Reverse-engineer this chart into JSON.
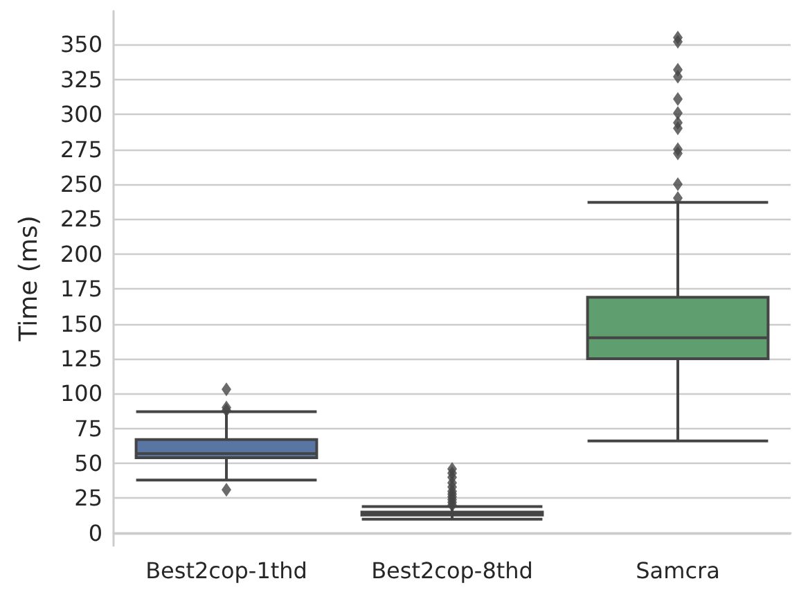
{
  "chart_data": {
    "type": "box",
    "ylabel": "Time (ms)",
    "categories": [
      "Best2cop-1thd",
      "Best2cop-8thd",
      "Samcra"
    ],
    "colors": [
      "#5875a4",
      "#cc8963",
      "#5f9e6e"
    ],
    "boxes": [
      {
        "low": 38,
        "q1": 54,
        "median": 57,
        "q3": 67,
        "high": 87,
        "outliers": [
          31,
          88,
          90,
          103
        ]
      },
      {
        "low": 10,
        "q1": 13,
        "median": 14,
        "q3": 15,
        "high": 19,
        "outliers": [
          20,
          22,
          24,
          26,
          28,
          30,
          33,
          36,
          40,
          43,
          46
        ]
      },
      {
        "low": 66,
        "q1": 125,
        "median": 140,
        "q3": 169,
        "high": 237,
        "outliers": [
          240,
          250,
          272,
          275,
          290,
          294,
          301,
          311,
          327,
          332,
          352,
          355
        ]
      }
    ],
    "ylim": [
      -9,
      374
    ],
    "yticks": [
      0,
      25,
      50,
      75,
      100,
      125,
      150,
      175,
      200,
      225,
      250,
      275,
      300,
      325,
      350
    ],
    "grid": "y",
    "marker": "diamond"
  }
}
